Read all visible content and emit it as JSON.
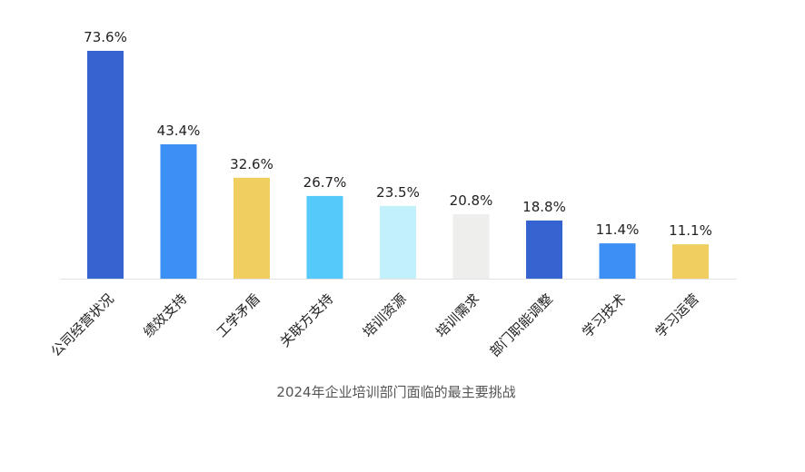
{
  "chart_data": {
    "type": "bar",
    "title": "2024年企业培训部门面临的最主要挑战",
    "categories": [
      "公司经营状况",
      "绩效支持",
      "工学矛盾",
      "关联方支持",
      "培训资源",
      "培训需求",
      "部门职能调整",
      "学习技术",
      "学习运营"
    ],
    "values": [
      73.6,
      43.4,
      32.6,
      26.7,
      23.5,
      20.8,
      18.8,
      11.4,
      11.1
    ],
    "value_labels": [
      "73.6%",
      "43.4%",
      "32.6%",
      "26.7%",
      "23.5%",
      "20.8%",
      "18.8%",
      "11.4%",
      "11.1%"
    ],
    "colors": [
      "#3563cf",
      "#3b8ff5",
      "#f0cf60",
      "#55c9fa",
      "#c3f1fb",
      "#eeeeec",
      "#3563cf",
      "#3b8ff5",
      "#f0cf60"
    ],
    "xlabel": "",
    "ylabel": "",
    "ylim": [
      0,
      73.6
    ],
    "grid": false,
    "legend": "none"
  }
}
